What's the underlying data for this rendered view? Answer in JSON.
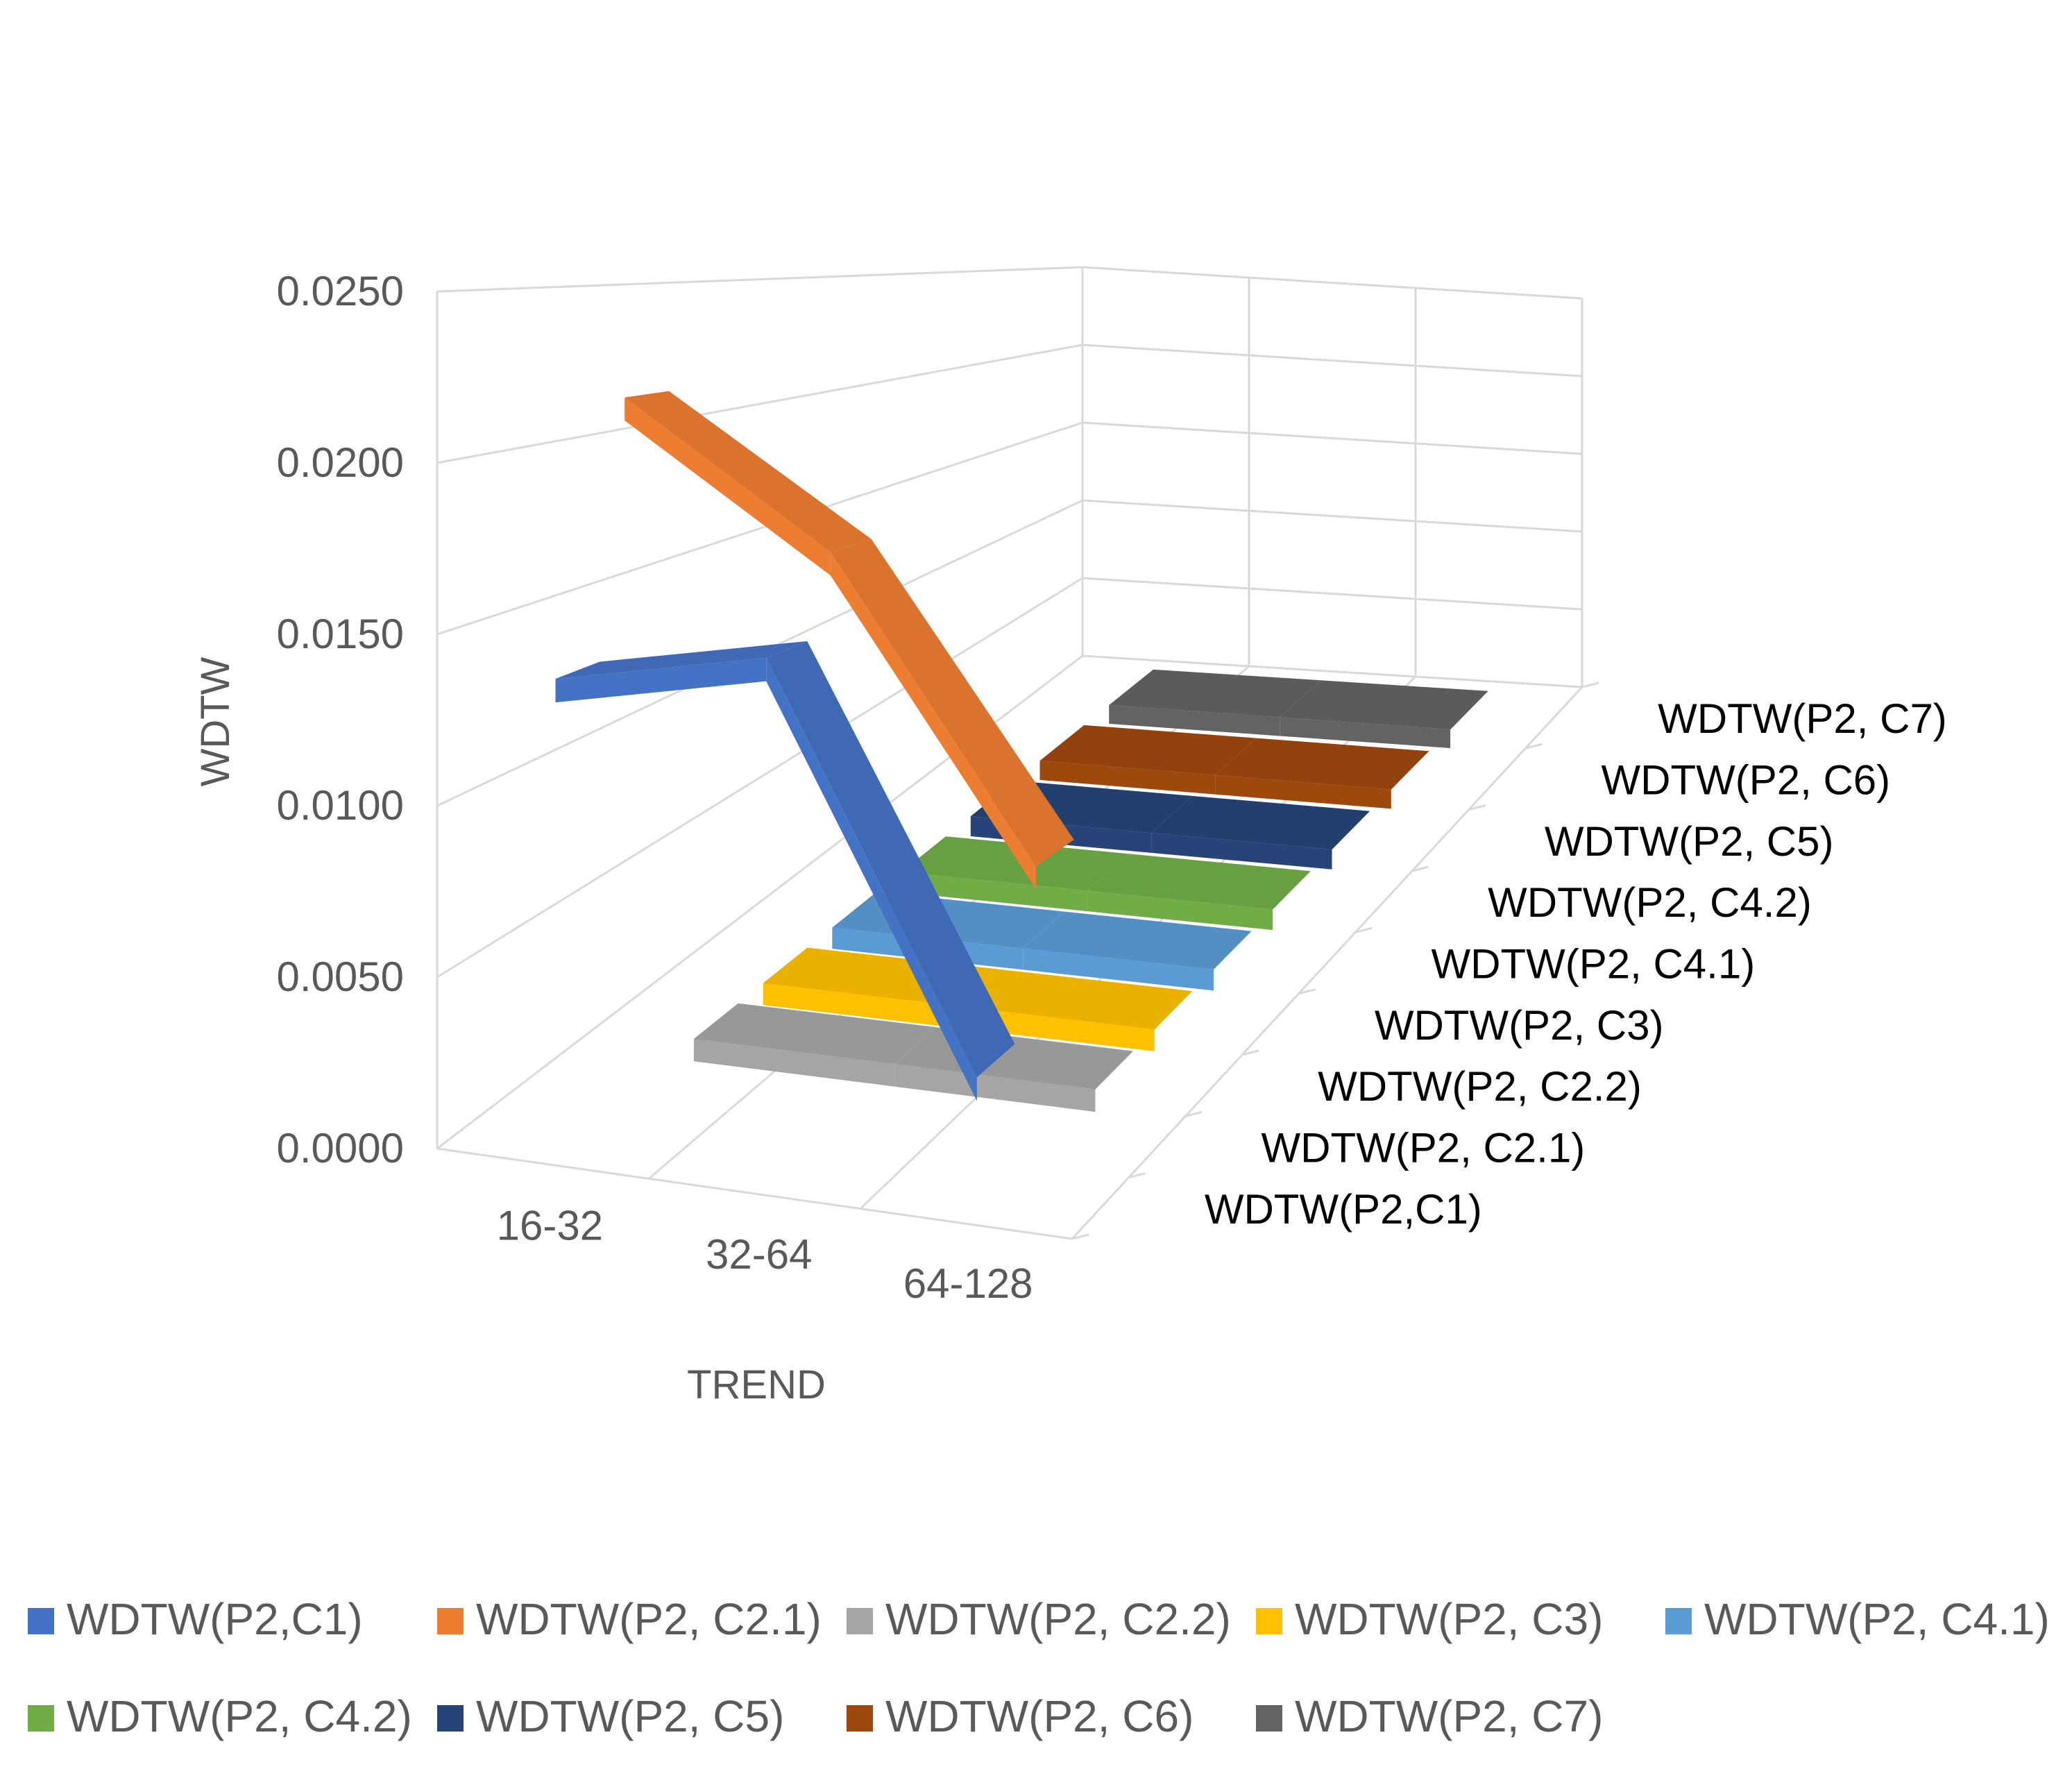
{
  "chart_data": {
    "type": "line",
    "variant": "3d-line",
    "title": "",
    "xlabel": "TREND",
    "ylabel": "WDTW",
    "categories": [
      "16-32",
      "32-64",
      "64-128"
    ],
    "ylim": [
      0,
      0.025
    ],
    "y_ticks": [
      "0.0000",
      "0.0050",
      "0.0100",
      "0.0150",
      "0.0200",
      "0.0250"
    ],
    "series": [
      {
        "name": "WDTW(P2,C1)",
        "color": "#4472C4",
        "values": [
          0.014,
          0.0155,
          0.004
        ]
      },
      {
        "name": "WDTW(P2, C2.1)",
        "color": "#ED7D31",
        "values": [
          0.022,
          0.018,
          0.009
        ]
      },
      {
        "name": "WDTW(P2, C2.2)",
        "color": "#A5A5A5",
        "values": [
          0.0001,
          0.0001,
          0.0001
        ]
      },
      {
        "name": "WDTW(P2, C3)",
        "color": "#FFC000",
        "values": [
          0.0001,
          0.0001,
          0.0001
        ]
      },
      {
        "name": "WDTW(P2, C4.1)",
        "color": "#5B9BD5",
        "values": [
          0.0001,
          0.0001,
          0.0001
        ]
      },
      {
        "name": "WDTW(P2, C4.2)",
        "color": "#70AD47",
        "values": [
          0.0001,
          0.0001,
          0.0001
        ]
      },
      {
        "name": "WDTW(P2, C5)",
        "color": "#264478",
        "values": [
          0.0001,
          0.0001,
          0.0001
        ]
      },
      {
        "name": "WDTW(P2, C6)",
        "color": "#9E480E",
        "values": [
          0.0001,
          0.0001,
          0.0001
        ]
      },
      {
        "name": "WDTW(P2, C7)",
        "color": "#636363",
        "values": [
          0.0001,
          0.0001,
          0.0001
        ]
      }
    ],
    "legend_position": "bottom"
  }
}
